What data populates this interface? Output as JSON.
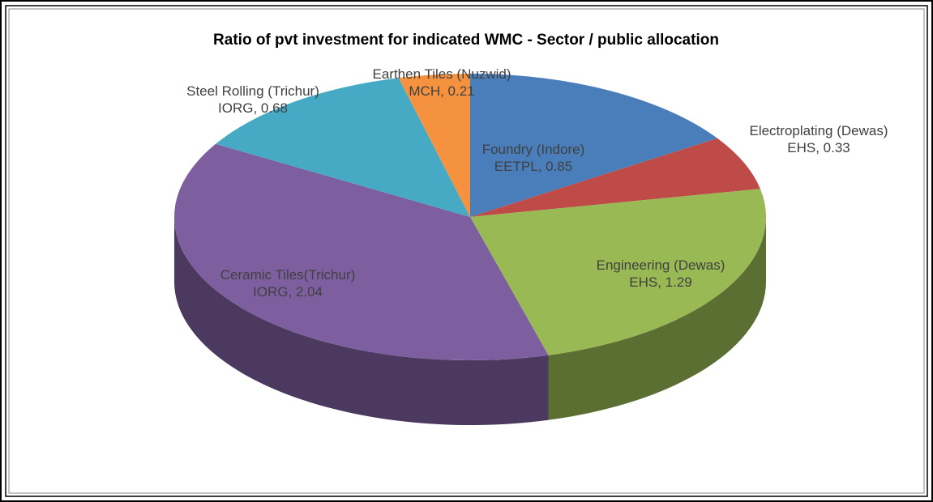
{
  "chart_data": {
    "type": "pie3d",
    "title": "Ratio of pvt investment for indicated WMC - Sector / public allocation",
    "values": [
      0.85,
      0.33,
      1.29,
      2.04,
      0.68,
      0.21
    ],
    "value_labels": [
      "Foundry (Indore) EETPL, 0.85",
      "Electroplating (Dewas) EHS, 0.33",
      "Engineering (Dewas) EHS, 1.29",
      "Ceramic Tiles(Trichur) IORG, 2.04",
      "Steel Rolling (Trichur) IORG, 0.68",
      "Earthen Tiles (Nuzwid) MCH, 0.21"
    ],
    "colors": [
      "#4a7ebb",
      "#be4b48",
      "#98b954",
      "#7d5fa0",
      "#46aac4",
      "#f59240"
    ]
  }
}
